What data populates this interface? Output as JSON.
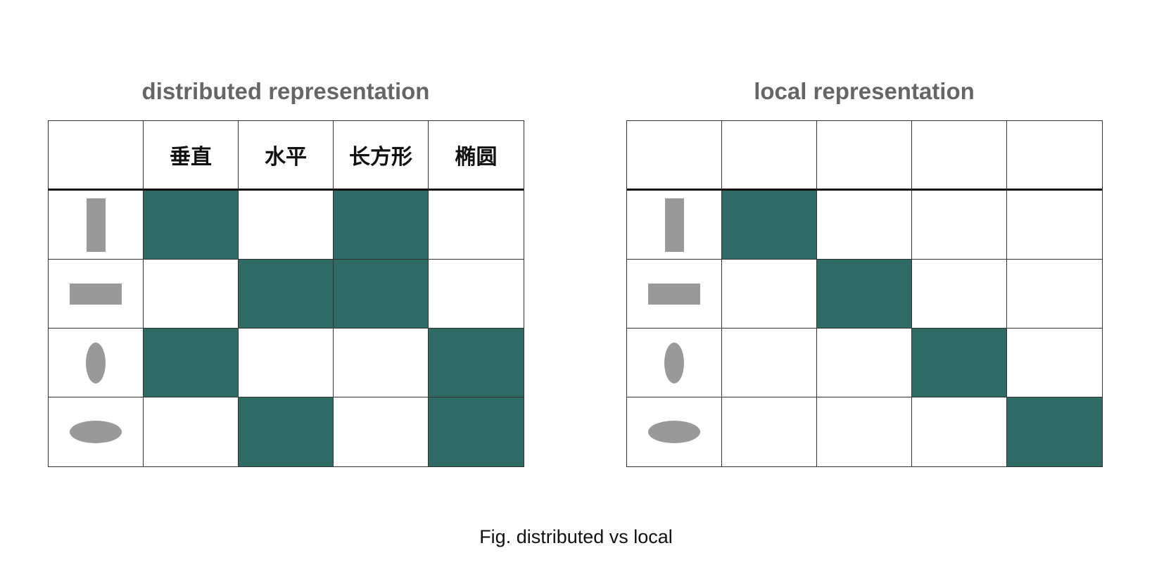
{
  "distributed": {
    "title": "distributed representation",
    "headers": [
      "",
      "垂直",
      "水平",
      "长方形",
      "椭圆"
    ],
    "row_shapes": [
      "vertical-rectangle",
      "horizontal-rectangle",
      "vertical-ellipse",
      "horizontal-ellipse"
    ],
    "matrix": [
      [
        1,
        0,
        1,
        0
      ],
      [
        0,
        1,
        1,
        0
      ],
      [
        1,
        0,
        0,
        1
      ],
      [
        0,
        1,
        0,
        1
      ]
    ]
  },
  "local": {
    "title": "local representation",
    "headers": [
      "",
      "",
      "",
      "",
      ""
    ],
    "row_shapes": [
      "vertical-rectangle",
      "horizontal-rectangle",
      "vertical-ellipse",
      "horizontal-ellipse"
    ],
    "matrix": [
      [
        1,
        0,
        0,
        0
      ],
      [
        0,
        1,
        0,
        0
      ],
      [
        0,
        0,
        1,
        0
      ],
      [
        0,
        0,
        0,
        1
      ]
    ]
  },
  "caption": "Fig. distributed vs local",
  "colors": {
    "active_cell": "#2e6b65",
    "shape_fill": "#999999",
    "title": "#666666"
  }
}
